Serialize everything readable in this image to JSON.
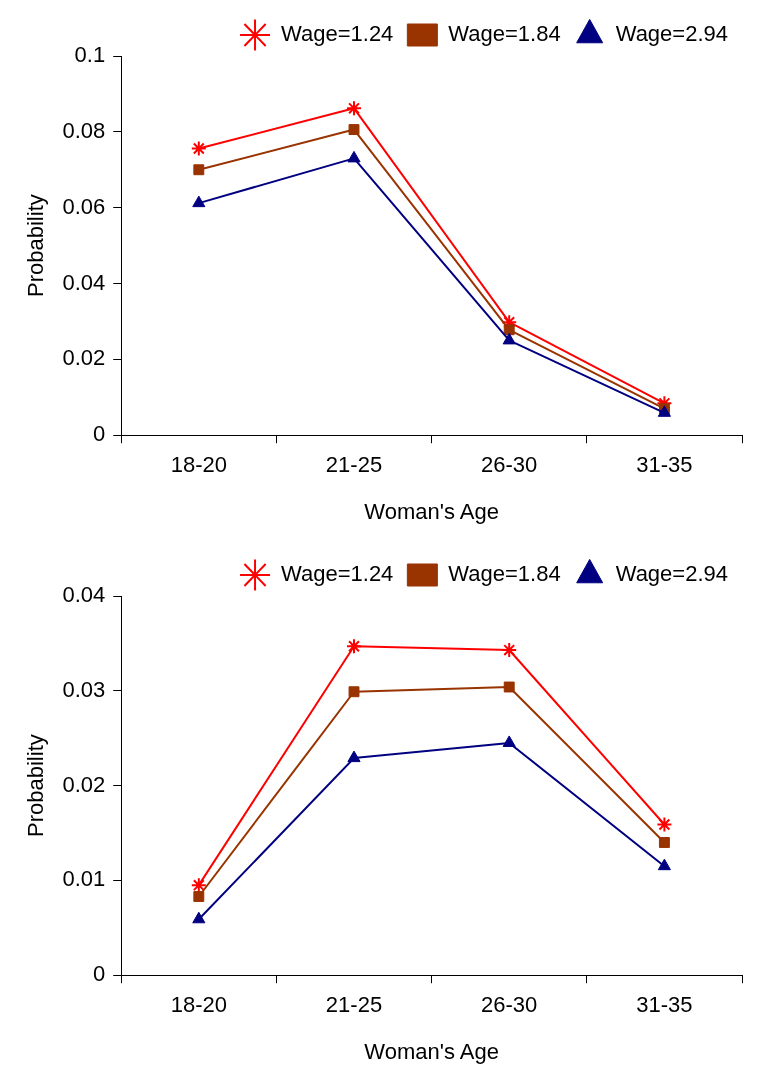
{
  "chart_data": [
    {
      "type": "line",
      "xlabel": "Woman's Age",
      "ylabel": "Probability",
      "categories": [
        "18-20",
        "21-25",
        "26-30",
        "31-35"
      ],
      "series": [
        {
          "name": "Wage=1.24",
          "color": "#ff0000",
          "marker": "cross",
          "values": [
            0.0756,
            0.0862,
            0.0298,
            0.0084
          ]
        },
        {
          "name": "Wage=1.84",
          "color": "#993300",
          "marker": "square",
          "values": [
            0.07,
            0.0806,
            0.0278,
            0.007
          ]
        },
        {
          "name": "Wage=2.94",
          "color": "#000080",
          "marker": "triangle",
          "values": [
            0.0612,
            0.073,
            0.025,
            0.0059
          ]
        }
      ],
      "ylim": [
        0,
        0.1
      ],
      "yticks": [
        0,
        0.02,
        0.04,
        0.06,
        0.08,
        0.1
      ],
      "grid": false,
      "legend": "top right",
      "line_style": "solid"
    },
    {
      "type": "line",
      "xlabel": "Woman's Age",
      "ylabel": "Probability",
      "categories": [
        "18-20",
        "21-25",
        "26-30",
        "31-35"
      ],
      "series": [
        {
          "name": "Wage=1.24",
          "color": "#ff0000",
          "marker": "cross",
          "values": [
            0.0095,
            0.0347,
            0.0343,
            0.0159
          ]
        },
        {
          "name": "Wage=1.84",
          "color": "#993300",
          "marker": "square",
          "values": [
            0.0083,
            0.0299,
            0.0304,
            0.014
          ]
        },
        {
          "name": "Wage=2.94",
          "color": "#000080",
          "marker": "triangle",
          "values": [
            0.0059,
            0.0229,
            0.0245,
            0.0115
          ]
        }
      ],
      "ylim": [
        0,
        0.04
      ],
      "yticks": [
        0,
        0.01,
        0.02,
        0.03,
        0.04
      ],
      "grid": false,
      "legend": "top right",
      "line_style": "solid"
    }
  ]
}
